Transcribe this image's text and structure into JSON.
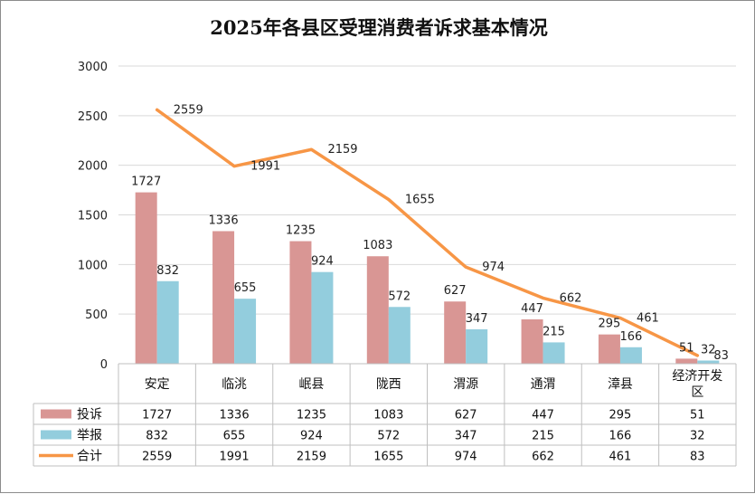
{
  "chart_data": {
    "type": "bar",
    "title": "2025年各县区受理消费者诉求基本情况",
    "categories": [
      "安定",
      "临洮",
      "岷县",
      "陇西",
      "渭源",
      "通渭",
      "漳县",
      "经济开发区"
    ],
    "series": [
      {
        "name": "投诉",
        "type": "bar",
        "color": "#d99694",
        "values": [
          1727,
          1336,
          1235,
          1083,
          627,
          447,
          295,
          51
        ]
      },
      {
        "name": "举报",
        "type": "bar",
        "color": "#93cddd",
        "values": [
          832,
          655,
          924,
          572,
          347,
          215,
          166,
          32
        ]
      },
      {
        "name": "合计",
        "type": "line",
        "color": "#f79646",
        "values": [
          2559,
          1991,
          2159,
          1655,
          974,
          662,
          461,
          83
        ]
      }
    ],
    "ylim": [
      0,
      3000
    ],
    "yticks": [
      0,
      500,
      1000,
      1500,
      2000,
      2500,
      3000
    ],
    "grid": true,
    "legend": "data-table-bottom",
    "xlabel": "",
    "ylabel": ""
  }
}
